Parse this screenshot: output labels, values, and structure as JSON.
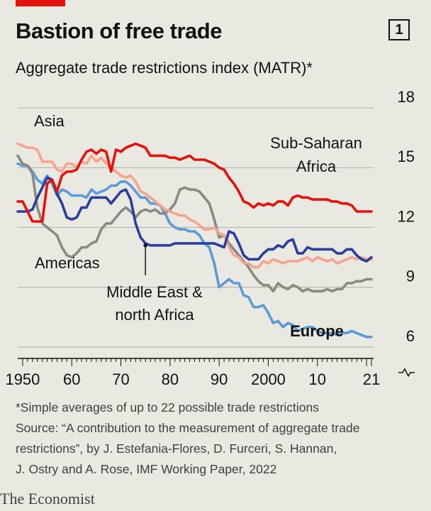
{
  "header": {
    "title": "Bastion of free trade",
    "chart_number": "1",
    "subtitle": "Aggregate trade restrictions index (MATR)*"
  },
  "footnote": {
    "lines": [
      "*Simple averages of up to 22 possible trade restrictions",
      "Source: “A contribution to the measurement of aggregate trade",
      "restrictions”, by J. Estefania-Flores, D. Furceri, S. Hannan,",
      "J. Ostry and A. Rose, IMF Working Paper, 2022"
    ]
  },
  "brand": "The Economist",
  "colors": {
    "background": "#e9e9e1",
    "brand_red": "#e3120b",
    "gridline": "#b7b7b7"
  },
  "chart_data": {
    "type": "line",
    "title": "Aggregate trade restrictions index (MATR)*",
    "xlim": [
      1949,
      2021
    ],
    "ylim": [
      4,
      18
    ],
    "axis_break_below": 6,
    "y_axis_side": "right",
    "grid": true,
    "x_ticks": [
      1950,
      1960,
      1970,
      1980,
      1990,
      2000,
      2010,
      2021
    ],
    "x_tick_labels": [
      "1950",
      "60",
      "70",
      "80",
      "90",
      "2000",
      "10",
      "21"
    ],
    "y_ticks": [
      6,
      9,
      12,
      15,
      18
    ],
    "y_tick_labels": [
      "6",
      "9",
      "12",
      "15",
      "18"
    ],
    "series": [
      {
        "name": "Europe",
        "color": "#5b9bd8",
        "label_bold": true,
        "x": [
          1949,
          1950,
          1951,
          1952,
          1953,
          1954,
          1955,
          1956,
          1957,
          1958,
          1959,
          1960,
          1961,
          1962,
          1963,
          1964,
          1965,
          1966,
          1967,
          1968,
          1969,
          1970,
          1971,
          1972,
          1973,
          1974,
          1975,
          1976,
          1977,
          1978,
          1979,
          1980,
          1981,
          1982,
          1983,
          1984,
          1985,
          1986,
          1987,
          1988,
          1989,
          1990,
          1991,
          1992,
          1993,
          1994,
          1995,
          1996,
          1997,
          1998,
          1999,
          2000,
          2001,
          2002,
          2003,
          2004,
          2005,
          2006,
          2007,
          2008,
          2009,
          2010,
          2011,
          2012,
          2013,
          2014,
          2015,
          2016,
          2017,
          2018,
          2019,
          2020,
          2021
        ],
        "values": [
          15.2,
          15.1,
          15.1,
          14.8,
          14.4,
          14.2,
          14.6,
          14.2,
          13.6,
          13.9,
          13.8,
          13.6,
          13.6,
          13.6,
          13.5,
          13.9,
          13.7,
          13.8,
          13.9,
          14.1,
          14.1,
          14.3,
          14.3,
          14.1,
          13.8,
          13.5,
          13.5,
          13.2,
          13.2,
          13.1,
          12.7,
          12.2,
          12.0,
          11.9,
          11.9,
          11.8,
          11.8,
          11.6,
          11.2,
          11.0,
          10.2,
          9.0,
          9.2,
          9.4,
          9.2,
          9.2,
          8.6,
          8.5,
          8.0,
          8.0,
          8.1,
          7.7,
          7.2,
          7.3,
          7.0,
          7.2,
          7.1,
          6.8,
          6.9,
          7.0,
          7.0,
          6.8,
          6.7,
          6.7,
          6.7,
          6.6,
          6.7,
          6.7,
          6.8,
          6.7,
          6.6,
          6.5,
          6.5
        ]
      },
      {
        "name": "Americas",
        "color": "#8a8a84",
        "x": [
          1949,
          1950,
          1951,
          1952,
          1953,
          1954,
          1955,
          1956,
          1957,
          1958,
          1959,
          1960,
          1961,
          1962,
          1963,
          1964,
          1965,
          1966,
          1967,
          1968,
          1969,
          1970,
          1971,
          1972,
          1973,
          1974,
          1975,
          1976,
          1977,
          1978,
          1979,
          1980,
          1981,
          1982,
          1983,
          1984,
          1985,
          1986,
          1987,
          1988,
          1989,
          1990,
          1991,
          1992,
          1993,
          1994,
          1995,
          1996,
          1997,
          1998,
          1999,
          2000,
          2001,
          2002,
          2003,
          2004,
          2005,
          2006,
          2007,
          2008,
          2009,
          2010,
          2011,
          2012,
          2013,
          2014,
          2015,
          2016,
          2017,
          2018,
          2019,
          2020,
          2021
        ],
        "values": [
          15.6,
          15.2,
          15.1,
          14.7,
          13.0,
          12.2,
          12.0,
          11.8,
          11.6,
          11.0,
          10.6,
          10.5,
          10.7,
          11.0,
          11.0,
          11.2,
          11.3,
          11.9,
          12.2,
          12.2,
          12.5,
          12.8,
          13.0,
          12.8,
          12.5,
          12.8,
          12.9,
          12.8,
          12.9,
          12.7,
          12.7,
          12.9,
          13.2,
          13.9,
          14.0,
          13.9,
          13.9,
          13.8,
          13.5,
          13.2,
          12.4,
          11.5,
          11.6,
          11.2,
          10.9,
          10.6,
          10.3,
          10.0,
          9.6,
          9.3,
          9.1,
          9.1,
          8.8,
          9.2,
          9.0,
          8.9,
          9.1,
          9.0,
          8.8,
          8.9,
          8.8,
          8.8,
          8.8,
          8.9,
          8.8,
          8.9,
          8.9,
          9.2,
          9.2,
          9.3,
          9.3,
          9.4,
          9.4
        ]
      },
      {
        "name": "Asia",
        "color": "#f5a58e",
        "x": [
          1949,
          1950,
          1951,
          1952,
          1953,
          1954,
          1955,
          1956,
          1957,
          1958,
          1959,
          1960,
          1961,
          1962,
          1963,
          1964,
          1965,
          1966,
          1967,
          1968,
          1969,
          1970,
          1971,
          1972,
          1973,
          1974,
          1975,
          1976,
          1977,
          1978,
          1979,
          1980,
          1981,
          1982,
          1983,
          1984,
          1985,
          1986,
          1987,
          1988,
          1989,
          1990,
          1991,
          1992,
          1993,
          1994,
          1995,
          1996,
          1997,
          1998,
          1999,
          2000,
          2001,
          2002,
          2003,
          2004,
          2005,
          2006,
          2007,
          2008,
          2009,
          2010,
          2011,
          2012,
          2013,
          2014,
          2015,
          2016,
          2017,
          2018,
          2019,
          2020,
          2021
        ],
        "values": [
          16.2,
          16.1,
          16.0,
          16.0,
          15.9,
          15.3,
          15.3,
          15.3,
          14.9,
          14.8,
          15.2,
          15.2,
          15.0,
          15.3,
          15.2,
          15.6,
          15.3,
          15.5,
          15.2,
          15.0,
          14.8,
          14.6,
          14.5,
          14.6,
          14.3,
          13.8,
          13.7,
          13.5,
          13.3,
          13.1,
          12.9,
          12.8,
          12.7,
          12.6,
          12.6,
          12.4,
          12.3,
          12.1,
          11.9,
          11.9,
          12.0,
          11.7,
          11.6,
          11.0,
          10.6,
          10.5,
          10.2,
          10.2,
          10.0,
          10.0,
          10.3,
          10.2,
          10.4,
          10.3,
          10.2,
          10.3,
          10.3,
          10.3,
          10.4,
          10.5,
          10.3,
          10.5,
          10.4,
          10.3,
          10.4,
          10.2,
          10.3,
          10.4,
          10.5,
          10.4,
          10.5,
          10.4,
          10.4
        ]
      },
      {
        "name": "Middle East & north Africa",
        "color": "#2a3ea0",
        "x": [
          1949,
          1950,
          1951,
          1952,
          1953,
          1954,
          1955,
          1956,
          1957,
          1958,
          1959,
          1960,
          1961,
          1962,
          1963,
          1964,
          1965,
          1966,
          1967,
          1968,
          1969,
          1970,
          1971,
          1972,
          1973,
          1974,
          1975,
          1976,
          1977,
          1978,
          1979,
          1980,
          1981,
          1982,
          1983,
          1984,
          1985,
          1986,
          1987,
          1988,
          1989,
          1990,
          1991,
          1992,
          1993,
          1994,
          1995,
          1996,
          1997,
          1998,
          1999,
          2000,
          2001,
          2002,
          2003,
          2004,
          2005,
          2006,
          2007,
          2008,
          2009,
          2010,
          2011,
          2012,
          2013,
          2014,
          2015,
          2016,
          2017,
          2018,
          2019,
          2020,
          2021
        ],
        "values": [
          12.8,
          12.8,
          12.8,
          12.9,
          13.5,
          14.0,
          14.5,
          14.4,
          13.7,
          13.2,
          12.5,
          12.4,
          12.5,
          13.0,
          13.0,
          13.5,
          13.5,
          13.5,
          13.5,
          13.2,
          13.5,
          13.8,
          13.9,
          13.4,
          12.2,
          11.5,
          11.2,
          11.1,
          11.1,
          11.1,
          11.1,
          11.1,
          11.2,
          11.2,
          11.2,
          11.2,
          11.2,
          11.2,
          11.2,
          11.2,
          11.2,
          11.1,
          11.0,
          11.8,
          11.7,
          11.2,
          10.6,
          10.4,
          10.4,
          10.4,
          10.7,
          10.9,
          10.9,
          11.1,
          11.0,
          11.3,
          11.4,
          10.7,
          10.7,
          11.0,
          10.9,
          10.9,
          10.9,
          10.9,
          10.9,
          10.7,
          10.7,
          10.9,
          10.9,
          10.6,
          10.4,
          10.3,
          10.5
        ]
      },
      {
        "name": "Sub-Saharan Africa",
        "color": "#e3120b",
        "x": [
          1949,
          1950,
          1951,
          1952,
          1953,
          1954,
          1955,
          1956,
          1957,
          1958,
          1959,
          1960,
          1961,
          1962,
          1963,
          1964,
          1965,
          1966,
          1967,
          1968,
          1969,
          1970,
          1971,
          1972,
          1973,
          1974,
          1975,
          1976,
          1977,
          1978,
          1979,
          1980,
          1981,
          1982,
          1983,
          1984,
          1985,
          1986,
          1987,
          1988,
          1989,
          1990,
          1991,
          1992,
          1993,
          1994,
          1995,
          1996,
          1997,
          1998,
          1999,
          2000,
          2001,
          2002,
          2003,
          2004,
          2005,
          2006,
          2007,
          2008,
          2009,
          2010,
          2011,
          2012,
          2013,
          2014,
          2015,
          2016,
          2017,
          2018,
          2019,
          2020,
          2021
        ],
        "values": [
          13.3,
          13.3,
          12.8,
          12.3,
          12.3,
          12.3,
          14.2,
          14.4,
          13.8,
          14.6,
          14.8,
          14.8,
          14.9,
          15.4,
          15.8,
          15.9,
          15.7,
          15.9,
          15.8,
          14.8,
          15.9,
          15.8,
          16.0,
          16.1,
          16.2,
          16.1,
          16.0,
          15.6,
          15.6,
          15.6,
          15.6,
          15.5,
          15.5,
          15.4,
          15.5,
          15.6,
          15.4,
          15.4,
          15.4,
          15.3,
          15.2,
          15.0,
          14.9,
          14.5,
          14.2,
          13.8,
          13.3,
          13.2,
          13.0,
          13.2,
          13.1,
          13.2,
          13.1,
          13.3,
          13.3,
          13.1,
          13.5,
          13.6,
          13.5,
          13.5,
          13.4,
          13.4,
          13.4,
          13.4,
          13.3,
          13.3,
          13.2,
          13.2,
          13.1,
          12.8,
          12.8,
          12.8,
          12.8
        ]
      }
    ],
    "labels": [
      {
        "text": "Asia"
      },
      {
        "text": "Sub-Saharan"
      },
      {
        "text": "Africa"
      },
      {
        "text": "Americas"
      },
      {
        "text": "Middle East &"
      },
      {
        "text": "north Africa"
      },
      {
        "text": "Europe"
      }
    ]
  }
}
